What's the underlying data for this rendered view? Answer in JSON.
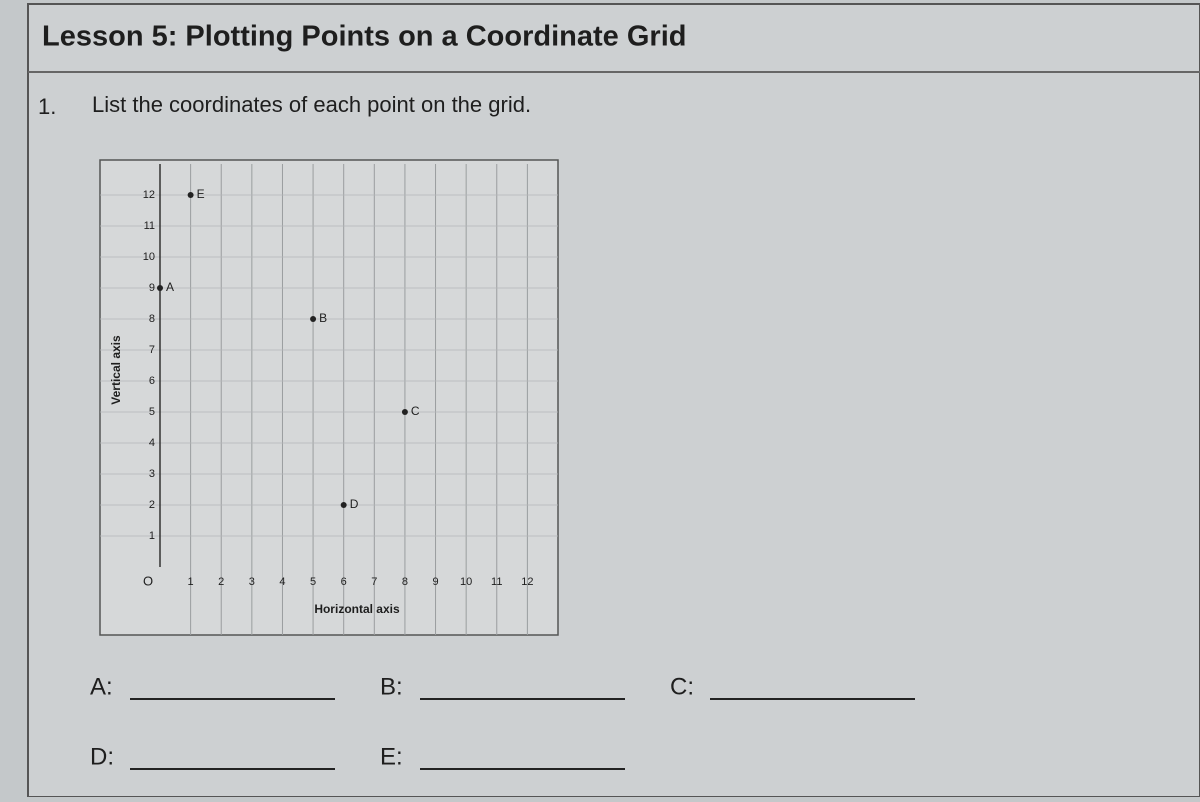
{
  "title": "Lesson 5: Plotting Points on a Coordinate Grid",
  "question": {
    "number": "1.",
    "text": "List the coordinates of each point on the grid."
  },
  "chart_data": {
    "type": "scatter",
    "x_label": "Horizontal axis",
    "y_label": "Vertical axis",
    "origin_label": "O",
    "xlim": [
      0,
      13
    ],
    "ylim": [
      0,
      13
    ],
    "xticks": [
      1,
      2,
      3,
      4,
      5,
      6,
      7,
      8,
      9,
      10,
      11,
      12
    ],
    "yticks": [
      1,
      2,
      3,
      4,
      5,
      6,
      7,
      8,
      9,
      10,
      11,
      12
    ],
    "grid": true,
    "color": "#222222",
    "points": [
      {
        "label": "A",
        "x": 0,
        "y": 9
      },
      {
        "label": "B",
        "x": 5,
        "y": 8
      },
      {
        "label": "C",
        "x": 8,
        "y": 5
      },
      {
        "label": "D",
        "x": 6,
        "y": 2
      },
      {
        "label": "E",
        "x": 1,
        "y": 12
      }
    ]
  },
  "answers": [
    "A:",
    "B:",
    "C:",
    "D:",
    "E:"
  ]
}
